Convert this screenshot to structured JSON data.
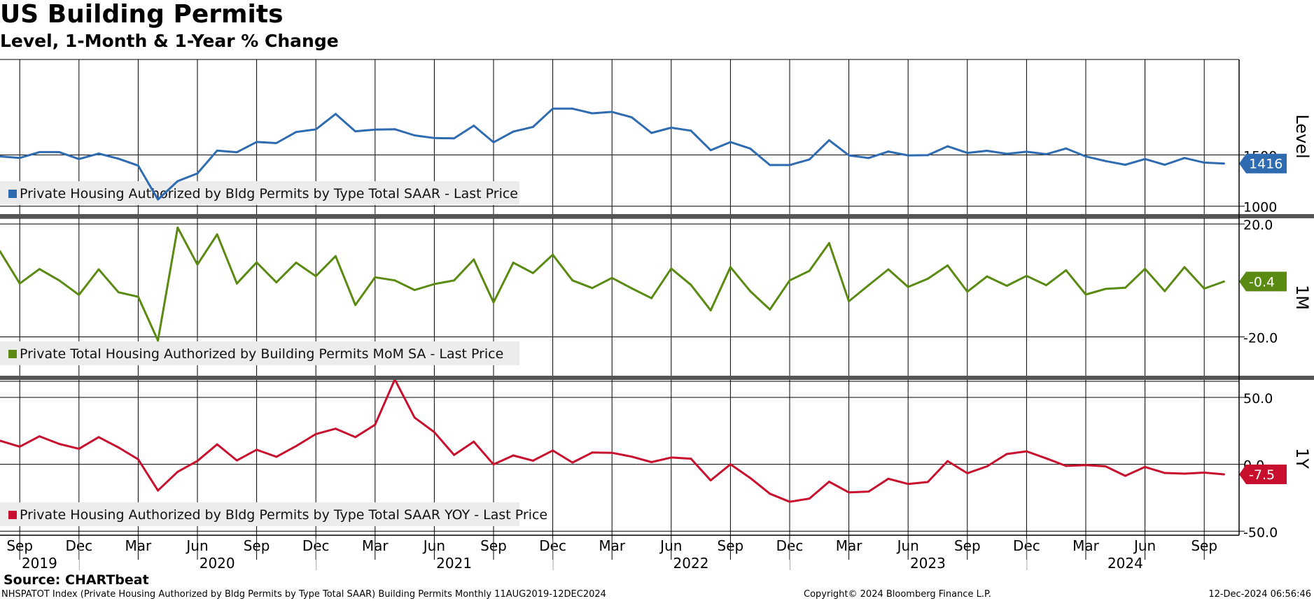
{
  "title": "US Building Permits",
  "subtitle": "Level, 1-Month & 1-Year % Change",
  "source": "Source: CHARTbeat",
  "footer": {
    "left": "NHSPATOT Index (Private Housing Authorized by Bldg Permits by Type Total SAAR) Building Permits  Monthly 11AUG2019-12DEC2024",
    "middle": "Copyright© 2024 Bloomberg Finance L.P.",
    "right": "12-Dec-2024 06:56:46"
  },
  "chart_data": [
    {
      "type": "line",
      "axis_label": "Level",
      "legend": "Private Housing Authorized by Bldg Permits by Type Total SAAR - Last Price",
      "color": "#2f6bb0",
      "last_value_label": "1416",
      "y_ticks": [
        1000,
        1500
      ],
      "ylim": [
        930,
        2430
      ],
      "x": [
        "2019-08",
        "2019-09",
        "2019-10",
        "2019-11",
        "2019-12",
        "2020-01",
        "2020-02",
        "2020-03",
        "2020-04",
        "2020-05",
        "2020-06",
        "2020-07",
        "2020-08",
        "2020-09",
        "2020-10",
        "2020-11",
        "2020-12",
        "2021-01",
        "2021-02",
        "2021-03",
        "2021-04",
        "2021-05",
        "2021-06",
        "2021-07",
        "2021-08",
        "2021-09",
        "2021-10",
        "2021-11",
        "2021-12",
        "2022-01",
        "2022-02",
        "2022-03",
        "2022-04",
        "2022-05",
        "2022-06",
        "2022-07",
        "2022-08",
        "2022-09",
        "2022-10",
        "2022-11",
        "2022-12",
        "2023-01",
        "2023-02",
        "2023-03",
        "2023-04",
        "2023-05",
        "2023-06",
        "2023-07",
        "2023-08",
        "2023-09",
        "2023-10",
        "2023-11",
        "2023-12",
        "2024-01",
        "2024-02",
        "2024-03",
        "2024-04",
        "2024-05",
        "2024-06",
        "2024-07",
        "2024-08",
        "2024-09",
        "2024-10"
      ],
      "values": [
        1486,
        1471,
        1527,
        1527,
        1460,
        1513,
        1463,
        1396,
        1066,
        1244,
        1319,
        1542,
        1526,
        1626,
        1615,
        1723,
        1749,
        1899,
        1730,
        1747,
        1750,
        1690,
        1664,
        1661,
        1785,
        1623,
        1727,
        1773,
        1951,
        1951,
        1905,
        1919,
        1866,
        1714,
        1765,
        1736,
        1546,
        1625,
        1562,
        1401,
        1401,
        1456,
        1643,
        1495,
        1470,
        1533,
        1495,
        1498,
        1584,
        1519,
        1540,
        1510,
        1531,
        1507,
        1563,
        1485,
        1440,
        1404,
        1460,
        1404,
        1470,
        1425,
        1416
      ]
    },
    {
      "type": "line",
      "axis_label": "1M",
      "legend": "Private Total Housing Authorized by Building Permits MoM SA - Last Price",
      "color": "#5a8a12",
      "last_value_label": "-0.4",
      "y_ticks": [
        20.0,
        -20.0
      ],
      "ylim": [
        -34,
        22
      ],
      "x": [
        "2019-08",
        "2019-09",
        "2019-10",
        "2019-11",
        "2019-12",
        "2020-01",
        "2020-02",
        "2020-03",
        "2020-04",
        "2020-05",
        "2020-06",
        "2020-07",
        "2020-08",
        "2020-09",
        "2020-10",
        "2020-11",
        "2020-12",
        "2021-01",
        "2021-02",
        "2021-03",
        "2021-04",
        "2021-05",
        "2021-06",
        "2021-07",
        "2021-08",
        "2021-09",
        "2021-10",
        "2021-11",
        "2021-12",
        "2022-01",
        "2022-02",
        "2022-03",
        "2022-04",
        "2022-05",
        "2022-06",
        "2022-07",
        "2022-08",
        "2022-09",
        "2022-10",
        "2022-11",
        "2022-12",
        "2023-01",
        "2023-02",
        "2023-03",
        "2023-04",
        "2023-05",
        "2023-06",
        "2023-07",
        "2023-08",
        "2023-09",
        "2023-10",
        "2023-11",
        "2023-12",
        "2024-01",
        "2024-02",
        "2024-03",
        "2024-04",
        "2024-05",
        "2024-06",
        "2024-07",
        "2024-08",
        "2024-09",
        "2024-10"
      ],
      "values": [
        10.3,
        -1.1,
        4.0,
        0.0,
        -5.1,
        3.9,
        -4.2,
        -5.8,
        -21.3,
        18.7,
        5.6,
        16.3,
        -1.1,
        6.4,
        -0.7,
        6.3,
        1.5,
        8.6,
        -8.7,
        1.1,
        0.0,
        -3.4,
        -1.3,
        0.0,
        7.4,
        -7.8,
        6.3,
        2.6,
        9.1,
        0.0,
        -2.7,
        0.9,
        -2.8,
        -6.3,
        4.2,
        -1.6,
        -10.6,
        4.7,
        -3.8,
        -10.3,
        0.0,
        3.4,
        13.2,
        -7.4,
        -1.7,
        3.9,
        -2.3,
        0.6,
        5.3,
        -4.0,
        1.4,
        -1.9,
        1.6,
        -1.7,
        3.6,
        -5.0,
        -3.0,
        -2.6,
        4.1,
        -3.8,
        4.7,
        -2.9,
        -0.4
      ]
    },
    {
      "type": "line",
      "axis_label": "1Y",
      "legend": "Private Housing Authorized by Bldg Permits by Type Total SAAR YOY - Last Price",
      "color": "#c8102e",
      "last_value_label": "-7.5",
      "y_ticks": [
        50.0,
        0.0,
        -50.0
      ],
      "ylim": [
        -53,
        62
      ],
      "x": [
        "2019-08",
        "2019-09",
        "2019-10",
        "2019-11",
        "2019-12",
        "2020-01",
        "2020-02",
        "2020-03",
        "2020-04",
        "2020-05",
        "2020-06",
        "2020-07",
        "2020-08",
        "2020-09",
        "2020-10",
        "2020-11",
        "2020-12",
        "2021-01",
        "2021-02",
        "2021-03",
        "2021-04",
        "2021-05",
        "2021-06",
        "2021-07",
        "2021-08",
        "2021-09",
        "2021-10",
        "2021-11",
        "2021-12",
        "2022-01",
        "2022-02",
        "2022-03",
        "2022-04",
        "2022-05",
        "2022-06",
        "2022-07",
        "2022-08",
        "2022-09",
        "2022-10",
        "2022-11",
        "2022-12",
        "2023-01",
        "2023-02",
        "2023-03",
        "2023-04",
        "2023-05",
        "2023-06",
        "2023-07",
        "2023-08",
        "2023-09",
        "2023-10",
        "2023-11",
        "2023-12",
        "2024-01",
        "2024-02",
        "2024-03",
        "2024-04",
        "2024-05",
        "2024-06",
        "2024-07",
        "2024-08",
        "2024-09",
        "2024-10"
      ],
      "values": [
        17.6,
        13.2,
        20.9,
        15.2,
        11.6,
        20.3,
        12.6,
        3.7,
        -19.6,
        -5.6,
        2.5,
        14.9,
        2.9,
        10.9,
        5.6,
        13.6,
        22.6,
        26.6,
        20.3,
        29.6,
        63.4,
        34.9,
        24.0,
        7.0,
        16.9,
        -0.1,
        6.6,
        2.7,
        10.3,
        1.3,
        8.8,
        8.6,
        5.7,
        1.6,
        5.1,
        4.2,
        -12.0,
        0.0,
        -10.2,
        -22.0,
        -28.0,
        -25.6,
        -13.0,
        -21.0,
        -20.4,
        -10.8,
        -14.7,
        -13.2,
        2.4,
        -6.7,
        -1.5,
        7.7,
        9.7,
        4.4,
        -1.2,
        -0.6,
        -1.5,
        -8.6,
        -2.0,
        -6.5,
        -7.0,
        -6.2,
        -7.5
      ]
    }
  ],
  "x_axis": {
    "month_labels": [
      {
        "x": "2019-09",
        "label": "Sep"
      },
      {
        "x": "2019-12",
        "label": "Dec"
      },
      {
        "x": "2020-03",
        "label": "Mar"
      },
      {
        "x": "2020-06",
        "label": "Jun"
      },
      {
        "x": "2020-09",
        "label": "Sep"
      },
      {
        "x": "2020-12",
        "label": "Dec"
      },
      {
        "x": "2021-03",
        "label": "Mar"
      },
      {
        "x": "2021-06",
        "label": "Jun"
      },
      {
        "x": "2021-09",
        "label": "Sep"
      },
      {
        "x": "2021-12",
        "label": "Dec"
      },
      {
        "x": "2022-03",
        "label": "Mar"
      },
      {
        "x": "2022-06",
        "label": "Jun"
      },
      {
        "x": "2022-09",
        "label": "Sep"
      },
      {
        "x": "2022-12",
        "label": "Dec"
      },
      {
        "x": "2023-03",
        "label": "Mar"
      },
      {
        "x": "2023-06",
        "label": "Jun"
      },
      {
        "x": "2023-09",
        "label": "Sep"
      },
      {
        "x": "2023-12",
        "label": "Dec"
      },
      {
        "x": "2024-03",
        "label": "Mar"
      },
      {
        "x": "2024-06",
        "label": "Jun"
      },
      {
        "x": "2024-09",
        "label": "Sep"
      }
    ],
    "year_labels": [
      "2019",
      "2020",
      "2021",
      "2022",
      "2023",
      "2024"
    ]
  }
}
